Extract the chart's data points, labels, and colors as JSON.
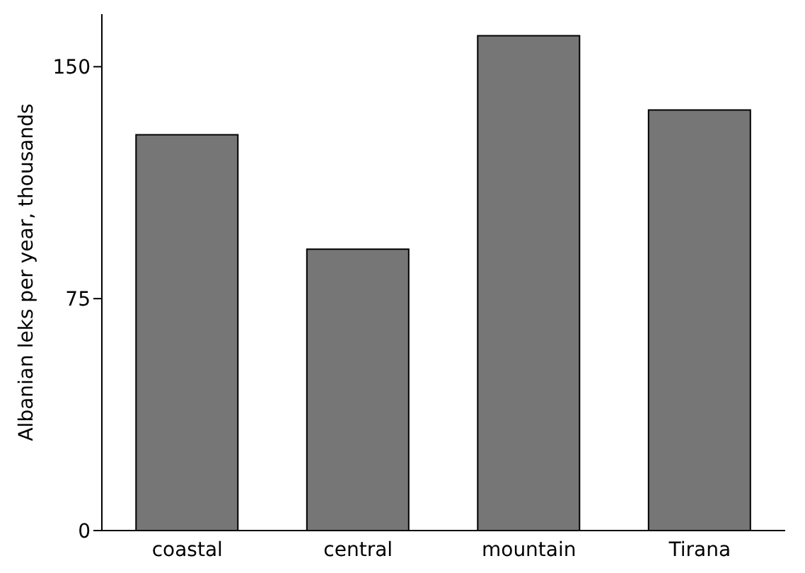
{
  "chart_data": {
    "type": "bar",
    "ylabel": "Albanian leks per year,  thousands",
    "categories": [
      "coastal",
      "central",
      "mountain",
      "Tirana"
    ],
    "values": [
      128,
      91,
      160,
      136
    ],
    "color": "#767676",
    "ylim": [
      0,
      167
    ],
    "yticks": [
      0,
      75,
      150
    ],
    "grid": false
  }
}
